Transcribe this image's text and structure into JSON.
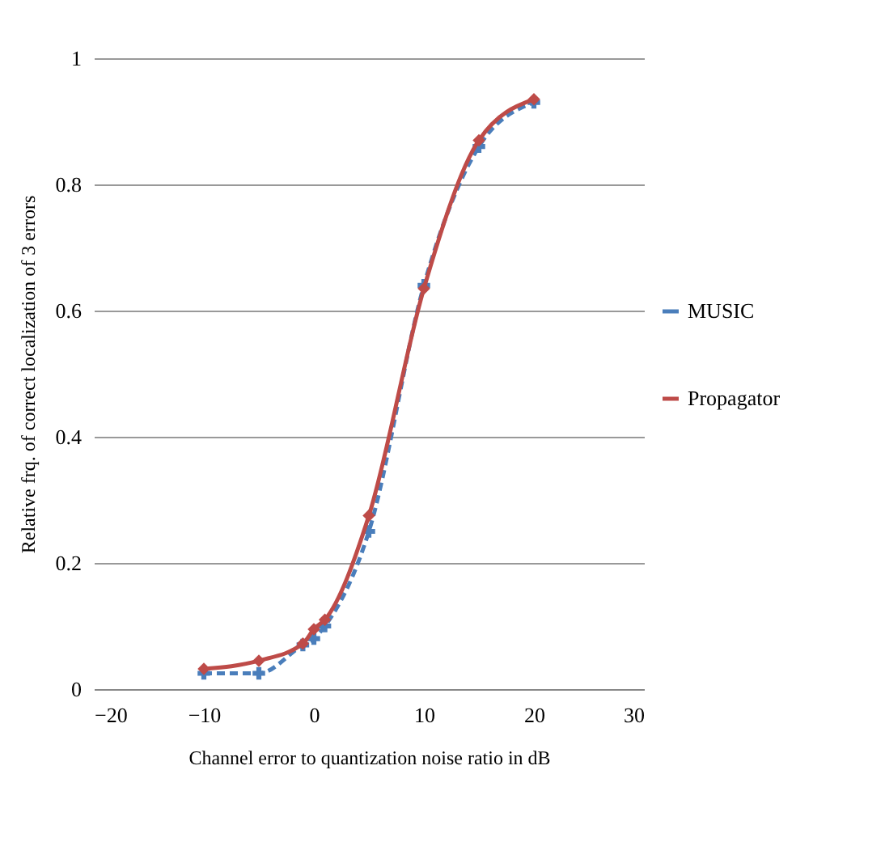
{
  "chart_data": {
    "type": "line",
    "xlabel": "Channel error to quantization noise ratio in dB",
    "ylabel": "Relative frq. of correct localization of 3  errors",
    "x": [
      -10,
      -5,
      -1,
      0,
      1,
      5,
      10,
      15,
      20
    ],
    "series": [
      {
        "name": "MUSIC",
        "color": "#4a7ebb",
        "line_style": "dashed",
        "marker": "cross",
        "values": [
          0.025,
          0.025,
          0.07,
          0.08,
          0.1,
          0.25,
          0.64,
          0.86,
          0.93
        ]
      },
      {
        "name": "Propagator",
        "color": "#be4b48",
        "line_style": "solid",
        "marker": "diamond",
        "values": [
          0.032,
          0.045,
          0.072,
          0.095,
          0.11,
          0.275,
          0.635,
          0.87,
          0.935
        ]
      }
    ],
    "xlim": [
      -20,
      30
    ],
    "xticks": [
      -20,
      -10,
      0,
      10,
      20,
      30
    ],
    "ylim": [
      0,
      1
    ],
    "yticks": [
      0,
      0.2,
      0.4,
      0.6,
      0.8,
      1
    ],
    "grid": "y",
    "legend": "right"
  }
}
